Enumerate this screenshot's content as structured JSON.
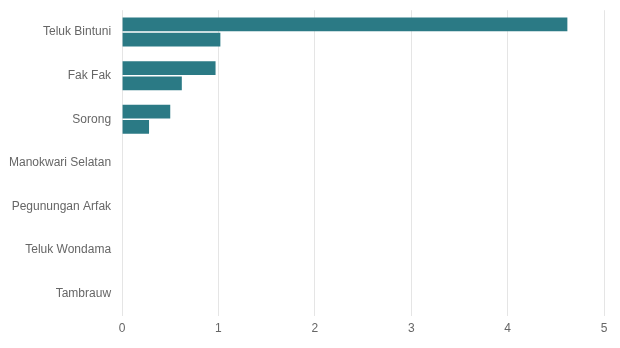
{
  "chart_data": {
    "type": "bar",
    "orientation": "horizontal",
    "categories": [
      "Teluk Bintuni",
      "Fak Fak",
      "Sorong",
      "Manokwari Selatan",
      "Pegunungan Arfak",
      "Teluk Wondama",
      "Tambrauw"
    ],
    "series": [
      {
        "color": "#2b7a85",
        "values": [
          4.62,
          0.97,
          0.5,
          0.0,
          0.0,
          0.0,
          0.0
        ]
      },
      {
        "color": "#2b7a85",
        "values": [
          1.02,
          0.62,
          0.28,
          0.0,
          0.0,
          0.0,
          0.0
        ]
      }
    ],
    "xlim": [
      0,
      5
    ],
    "xticks": [
      0,
      1,
      2,
      3,
      4,
      5
    ],
    "grid": true
  }
}
